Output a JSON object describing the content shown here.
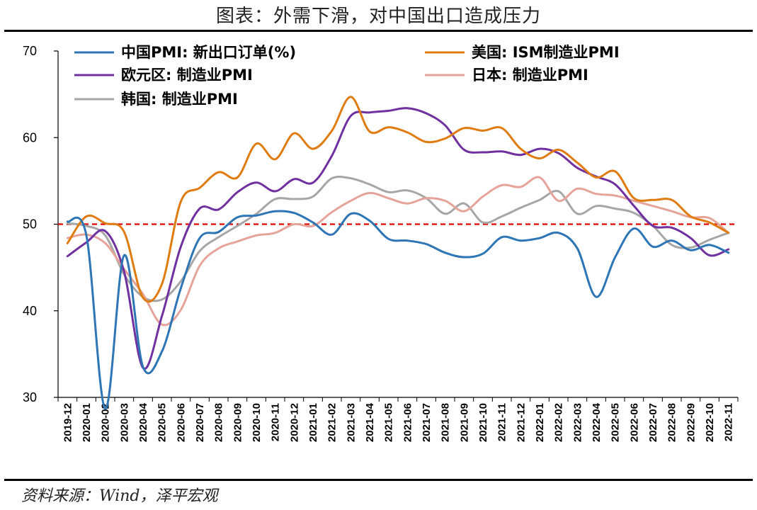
{
  "title": "图表：外需下滑，对中国出口造成压力",
  "source": "资料来源：Wind，泽平宏观",
  "chart_data": {
    "type": "line",
    "ylim": [
      30,
      70
    ],
    "yticks": [
      30,
      40,
      50,
      60,
      70
    ],
    "reference_line": {
      "value": 50,
      "color": "#e00000",
      "style": "dashed"
    },
    "grid": false,
    "legend_position": "top",
    "x": [
      "2019-12",
      "2020-01",
      "2020-02",
      "2020-03",
      "2020-04",
      "2020-05",
      "2020-06",
      "2020-07",
      "2020-08",
      "2020-09",
      "2020-10",
      "2020-11",
      "2020-12",
      "2021-01",
      "2021-02",
      "2021-03",
      "2021-04",
      "2021-05",
      "2021-06",
      "2021-07",
      "2021-08",
      "2021-09",
      "2021-10",
      "2021-11",
      "2021-12",
      "2022-01",
      "2022-02",
      "2022-03",
      "2022-04",
      "2022-05",
      "2022-06",
      "2022-07",
      "2022-08",
      "2022-09",
      "2022-10",
      "2022-11"
    ],
    "series": [
      {
        "name": "中国PMI: 新出口订单(%)",
        "color": "#2e75b6",
        "values": [
          50.3,
          48.7,
          28.7,
          46.4,
          33.5,
          35.3,
          42.6,
          48.4,
          49.1,
          50.8,
          51.0,
          51.5,
          51.3,
          50.2,
          48.8,
          51.2,
          50.4,
          48.3,
          48.1,
          47.7,
          46.7,
          46.2,
          46.6,
          48.5,
          48.1,
          48.4,
          49.0,
          47.2,
          41.6,
          46.2,
          49.5,
          47.4,
          48.1,
          47.0,
          47.6,
          46.7
        ]
      },
      {
        "name": "美国: ISM制造业PMI",
        "color": "#e07b10",
        "values": [
          47.8,
          50.9,
          50.1,
          49.1,
          41.5,
          43.1,
          52.6,
          54.2,
          56.0,
          55.4,
          59.3,
          57.5,
          60.5,
          58.7,
          60.8,
          64.7,
          60.7,
          61.2,
          60.6,
          59.5,
          59.9,
          61.1,
          60.8,
          61.1,
          58.7,
          57.6,
          58.6,
          57.1,
          55.4,
          56.1,
          53.0,
          52.8,
          52.8,
          50.9,
          50.2,
          49.0
        ]
      },
      {
        "name": "欧元区: 制造业PMI",
        "color": "#7030a0",
        "values": [
          46.3,
          47.9,
          49.2,
          44.5,
          33.4,
          39.4,
          47.4,
          51.8,
          51.7,
          53.7,
          54.8,
          53.8,
          55.2,
          54.8,
          57.9,
          62.5,
          62.9,
          63.1,
          63.4,
          62.8,
          61.4,
          58.6,
          58.3,
          58.4,
          58.0,
          58.7,
          58.2,
          56.5,
          55.5,
          54.6,
          52.1,
          49.8,
          49.6,
          48.4,
          46.4,
          47.1
        ]
      },
      {
        "name": "日本: 制造业PMI",
        "color": "#e6a39a",
        "values": [
          48.4,
          48.8,
          47.8,
          44.8,
          41.9,
          38.4,
          40.1,
          45.2,
          47.2,
          48.0,
          48.7,
          49.0,
          50.0,
          49.8,
          51.4,
          52.7,
          53.6,
          53.0,
          52.4,
          53.0,
          52.7,
          51.5,
          53.2,
          54.5,
          54.3,
          55.4,
          52.7,
          54.1,
          53.5,
          53.3,
          52.7,
          52.1,
          51.5,
          50.8,
          50.7,
          49.0
        ]
      },
      {
        "name": "韩国: 制造业PMI",
        "color": "#a6a6a6",
        "values": [
          50.1,
          49.8,
          48.7,
          44.2,
          41.6,
          41.3,
          43.4,
          46.9,
          48.5,
          49.8,
          51.2,
          52.9,
          52.9,
          53.2,
          55.3,
          55.3,
          54.6,
          53.7,
          53.9,
          53.0,
          51.2,
          52.4,
          50.2,
          50.9,
          51.9,
          52.8,
          53.8,
          51.2,
          52.1,
          51.8,
          51.3,
          49.8,
          47.6,
          47.3,
          48.2,
          49.0
        ]
      }
    ]
  }
}
